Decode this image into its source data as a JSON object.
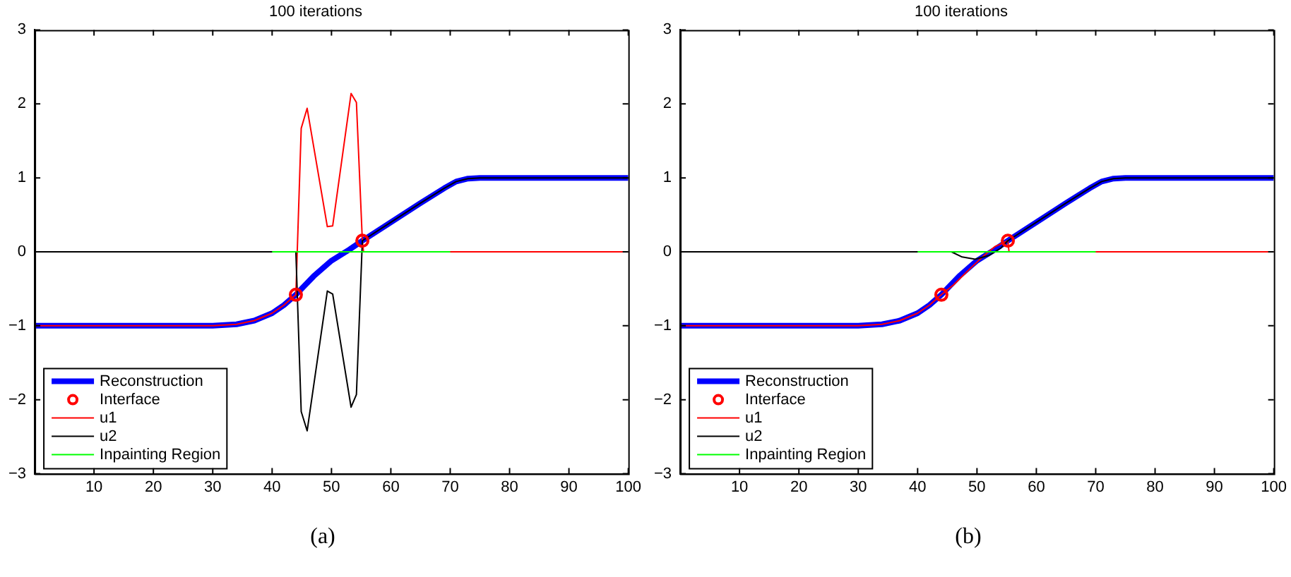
{
  "chart_data": [
    {
      "type": "line",
      "title": "100 iterations",
      "annotations": [
        "(a)"
      ],
      "xlim": [
        0,
        100
      ],
      "xticks": [
        10,
        20,
        30,
        40,
        50,
        60,
        70,
        80,
        90,
        100
      ],
      "ylim": [
        -3,
        3
      ],
      "yticks": [
        -3,
        -2,
        -1,
        0,
        1,
        2,
        3
      ],
      "grid": false,
      "legend": "bottom left",
      "series": [
        {
          "name": "Reconstruction",
          "color": "#0000ff",
          "type": "line",
          "x": [
            0,
            30,
            34,
            37,
            40,
            42,
            44,
            47,
            50,
            53,
            55.2,
            60,
            65,
            69,
            71,
            73,
            75,
            100
          ],
          "values": [
            -1,
            -1,
            -0.98,
            -0.93,
            -0.83,
            -0.72,
            -0.58,
            -0.33,
            -0.12,
            0.03,
            0.15,
            0.4,
            0.66,
            0.86,
            0.95,
            0.99,
            1,
            1
          ]
        },
        {
          "name": "Interface",
          "color": "#ff0000",
          "type": "scatter",
          "marker": "circle",
          "x": [
            44,
            55.2
          ],
          "values": [
            -0.58,
            0.15
          ]
        },
        {
          "name": "u1",
          "color": "#ff0000",
          "type": "line",
          "x": [
            0,
            30,
            34,
            37,
            40,
            42,
            44,
            44.9,
            45.9,
            49.3,
            50.2,
            53.3,
            54.2,
            55.2,
            55.4,
            100
          ],
          "values": [
            -1,
            -1,
            -0.98,
            -0.93,
            -0.83,
            -0.72,
            -0.58,
            1.67,
            1.94,
            0.34,
            0.35,
            2.14,
            2.02,
            0.15,
            0,
            0
          ]
        },
        {
          "name": "u2",
          "color": "#000000",
          "type": "line",
          "x": [
            0,
            44,
            44.9,
            45.9,
            49.3,
            50.2,
            53.3,
            54.2,
            55.2,
            60,
            65,
            69,
            71,
            73,
            75,
            100
          ],
          "values": [
            0,
            0,
            -2.16,
            -2.42,
            -0.53,
            -0.57,
            -2.1,
            -1.93,
            0.15,
            0.4,
            0.66,
            0.86,
            0.95,
            0.99,
            1,
            1
          ]
        },
        {
          "name": "Inpainting Region",
          "color": "#00ff00",
          "type": "line",
          "x": [
            40,
            70
          ],
          "values": [
            0,
            0
          ]
        }
      ]
    },
    {
      "type": "line",
      "title": "100 iterations",
      "annotations": [
        "(b)"
      ],
      "xlim": [
        0,
        100
      ],
      "xticks": [
        10,
        20,
        30,
        40,
        50,
        60,
        70,
        80,
        90,
        100
      ],
      "ylim": [
        -3,
        3
      ],
      "yticks": [
        -3,
        -2,
        -1,
        0,
        1,
        2,
        3
      ],
      "grid": false,
      "legend": "bottom left",
      "series": [
        {
          "name": "Reconstruction",
          "color": "#0000ff",
          "type": "line",
          "x": [
            0,
            30,
            34,
            37,
            40,
            42,
            44,
            47,
            50,
            53,
            55.2,
            60,
            65,
            69,
            71,
            73,
            75,
            100
          ],
          "values": [
            -1,
            -1,
            -0.98,
            -0.93,
            -0.83,
            -0.72,
            -0.58,
            -0.33,
            -0.12,
            0.03,
            0.15,
            0.4,
            0.66,
            0.86,
            0.95,
            0.99,
            1,
            1
          ]
        },
        {
          "name": "Interface",
          "color": "#ff0000",
          "type": "scatter",
          "marker": "circle",
          "x": [
            44,
            55.2
          ],
          "values": [
            -0.58,
            0.15
          ]
        },
        {
          "name": "u1",
          "color": "#ff0000",
          "type": "line",
          "x": [
            0,
            30,
            34,
            37,
            40,
            42,
            44,
            46,
            48.8,
            51.2,
            53,
            55.2,
            55.4,
            100
          ],
          "values": [
            -1,
            -1,
            -0.98,
            -0.93,
            -0.83,
            -0.72,
            -0.58,
            -0.45,
            -0.23,
            -0.05,
            0.07,
            0.15,
            0,
            0
          ]
        },
        {
          "name": "u2",
          "color": "#000000",
          "type": "line",
          "x": [
            0,
            45.7,
            47.5,
            49.7,
            52,
            54,
            55.2,
            60,
            65,
            69,
            71,
            73,
            75,
            100
          ],
          "values": [
            0,
            0,
            -0.07,
            -0.1,
            -0.05,
            0.05,
            0.15,
            0.4,
            0.66,
            0.86,
            0.95,
            0.99,
            1,
            1
          ]
        },
        {
          "name": "Inpainting Region",
          "color": "#00ff00",
          "type": "line",
          "x": [
            40,
            70
          ],
          "values": [
            0,
            0
          ]
        }
      ]
    }
  ]
}
